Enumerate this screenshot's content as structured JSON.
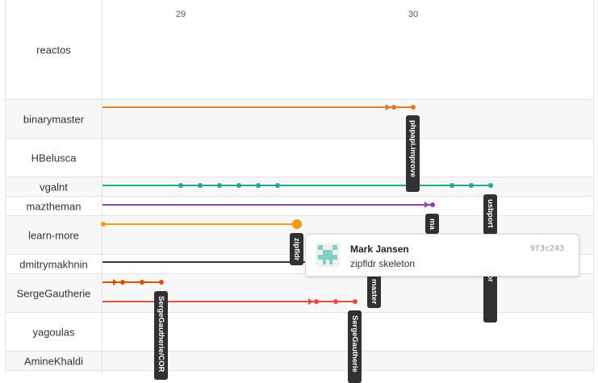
{
  "timeline": {
    "dates": [
      "29",
      "30"
    ]
  },
  "authors": [
    "reactos",
    "binarymaster",
    "HBelusca",
    "vgalnt",
    "maztheman",
    "learn-more",
    "dmitrymakhnin",
    "SergeGautherie",
    "yagoulas",
    "AmineKhaldi"
  ],
  "tags": {
    "binarymaster": "phpapi.improve",
    "vgalnt": "usbport",
    "maztheman": "ma",
    "learn-more": "zipfldr",
    "learn_more_2": "master",
    "vgalnt_2": "translator",
    "serge_1": "SergeGautherie/COR",
    "serge_2": "SergeGautherie"
  },
  "colors": {
    "binarymaster": "#e07b2a",
    "vgalnt": "#1aaa8f",
    "maztheman": "#8e44ad",
    "learn-more": "#f39c12",
    "dmitrymakhnin": "#2c3e50",
    "SergeGautherie": "#d35400",
    "SergeGautherie_2": "#e74c3c"
  },
  "tooltip": {
    "author": "Mark Jansen",
    "message": "zipfldr skeleton",
    "sha": "9f3c243",
    "avatar_color": "#7ecfc4",
    "avatar_icon": "identicon"
  }
}
